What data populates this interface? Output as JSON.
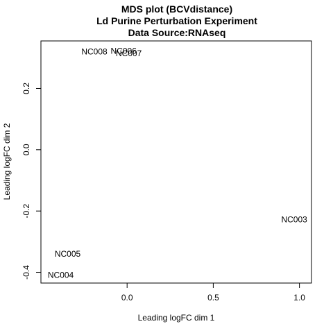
{
  "chart_data": {
    "type": "scatter",
    "title_lines": [
      "MDS plot (BCVdistance)",
      "Ld Purine Perturbation Experiment",
      "Data Source:RNAseq"
    ],
    "xlabel": "Leading logFC dim 1",
    "ylabel": "Leading logFC dim 2",
    "xlim": [
      -0.5,
      1.07
    ],
    "ylim": [
      -0.435,
      0.355
    ],
    "x_ticks": [
      {
        "value": 0.0,
        "label": "0.0"
      },
      {
        "value": 0.5,
        "label": "0.5"
      },
      {
        "value": 1.0,
        "label": "1.0"
      }
    ],
    "y_ticks": [
      {
        "value": -0.4,
        "label": "-0.4"
      },
      {
        "value": -0.2,
        "label": "-0.2"
      },
      {
        "value": 0.0,
        "label": "0.0"
      },
      {
        "value": 0.2,
        "label": "0.2"
      }
    ],
    "points": [
      {
        "label": "NC003",
        "x": 0.97,
        "y": -0.228
      },
      {
        "label": "NC004",
        "x": -0.385,
        "y": -0.409
      },
      {
        "label": "NC005",
        "x": -0.345,
        "y": -0.34
      },
      {
        "label": "NC006",
        "x": -0.02,
        "y": 0.322
      },
      {
        "label": "NC007",
        "x": 0.01,
        "y": 0.314
      },
      {
        "label": "NC008",
        "x": -0.19,
        "y": 0.32
      }
    ],
    "grid": false,
    "legend": "none"
  }
}
